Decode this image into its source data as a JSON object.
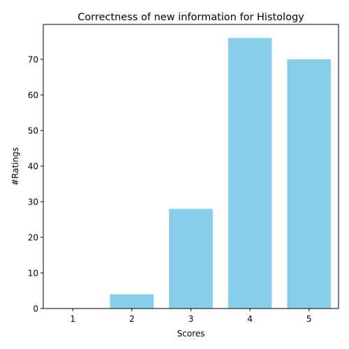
{
  "chart_data": {
    "type": "bar",
    "title": "Correctness of new information for Histology",
    "xlabel": "Scores",
    "ylabel": "#Ratings",
    "categories": [
      "1",
      "2",
      "3",
      "4",
      "5"
    ],
    "values": [
      0,
      4,
      28,
      76,
      70
    ],
    "ylim": [
      0,
      79.8
    ],
    "yticks": [
      0,
      10,
      20,
      30,
      40,
      50,
      60,
      70
    ],
    "grid": false,
    "colors": {
      "bar": "#87ceeb",
      "axis": "#000000"
    }
  }
}
